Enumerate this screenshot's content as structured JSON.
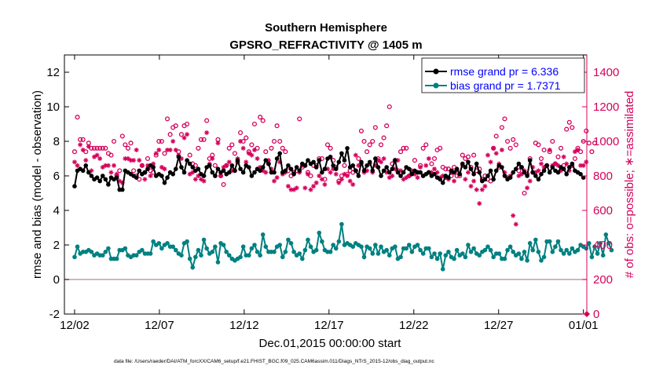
{
  "chart_data": {
    "type": "line",
    "title": "Southern Hemisphere",
    "subtitle": "GPSRO_REFRACTIVITY @ 1405 m",
    "xlabel": "Dec.01,2015 00:00:00 start",
    "ylabel": "rmse and bias (model - observation)",
    "ylabel_right": "# of obs: o=possible; ∗=assimilated",
    "x_ticks": [
      "12/02",
      "12/07",
      "12/12",
      "12/17",
      "12/22",
      "12/27",
      "01/01"
    ],
    "x_tick_days": [
      1,
      6,
      11,
      16,
      21,
      26,
      31
    ],
    "xlim": [
      0.4,
      31.2
    ],
    "y_ticks": [
      "-2",
      "0",
      "2",
      "4",
      "6",
      "8",
      "10",
      "12"
    ],
    "ylim": [
      -2,
      13
    ],
    "y2_ticks": [
      "0",
      "200",
      "400",
      "600",
      "800",
      "1000",
      "1200",
      "1400"
    ],
    "y2lim": [
      0,
      1500
    ],
    "legend": [
      {
        "label": "rmse grand pr = 6.336",
        "color": "#000000"
      },
      {
        "label": "bias grand pr = 1.7371",
        "color": "#008080"
      }
    ],
    "colors": {
      "rmse": "#000000",
      "bias": "#008080",
      "obs": "#d6005c",
      "zero": "#b08c94"
    },
    "series": [
      {
        "name": "rmse",
        "values": [
          5.4,
          6.3,
          6.4,
          6.3,
          6.6,
          6.2,
          6.0,
          5.8,
          5.9,
          5.7,
          6.0,
          5.8,
          5.5,
          5.9,
          5.8,
          5.9,
          5.2,
          5.2,
          6.3,
          6.2,
          6.1,
          6.0,
          5.9,
          6.3,
          6.1,
          6.2,
          6.4,
          6.6,
          6.5,
          6.0,
          6.1,
          6.0,
          5.6,
          5.9,
          6.2,
          6.1,
          6.4,
          7.1,
          6.5,
          6.2,
          6.9,
          6.7,
          6.5,
          6.3,
          6.4,
          6.1,
          6.0,
          6.5,
          6.6,
          6.2,
          6.0,
          6.4,
          6.2,
          6.3,
          6.1,
          6.2,
          6.6,
          6.3,
          6.9,
          6.4,
          6.2,
          6.6,
          6.5,
          6.0,
          6.2,
          6.4,
          6.3,
          6.5,
          6.9,
          6.7,
          6.2,
          6.2,
          7.0,
          7.3,
          6.2,
          6.3,
          6.6,
          6.4,
          6.1,
          6.5,
          6.3,
          6.7,
          6.6,
          6.9,
          6.7,
          6.8,
          6.5,
          6.9,
          6.2,
          6.4,
          7.0,
          7.1,
          6.6,
          6.4,
          6.8,
          7.3,
          6.9,
          7.6,
          6.5,
          6.6,
          6.3,
          6.0,
          6.8,
          6.3,
          6.6,
          6.8,
          6.3,
          7.0,
          6.5,
          6.0,
          6.3,
          6.5,
          6.2,
          6.4,
          6.9,
          6.2,
          6.0,
          6.2,
          6.5,
          6.4,
          6.1,
          6.3,
          6.2,
          6.2,
          6.0,
          6.1,
          6.2,
          6.0,
          6.1,
          5.9,
          5.8,
          5.6,
          6.0,
          5.9,
          6.3,
          6.2,
          6.4,
          6.1,
          6.7,
          6.5,
          6.8,
          6.4,
          6.1,
          6.7,
          6.2,
          5.7,
          5.8,
          6.0,
          6.3,
          5.8,
          6.3,
          6.6,
          6.5,
          6.0,
          5.8,
          5.9,
          6.2,
          6.4,
          6.7,
          6.5,
          6.2,
          6.0,
          6.9,
          6.2,
          6.0,
          5.8,
          6.1,
          6.3,
          6.6,
          6.2,
          6.5,
          6.3,
          6.2,
          6.5,
          6.4,
          6.1,
          6.5,
          6.7,
          6.3,
          6.2,
          6.1,
          5.9
        ]
      },
      {
        "name": "bias",
        "values": [
          1.3,
          1.9,
          1.5,
          1.6,
          1.6,
          1.7,
          1.6,
          1.4,
          1.5,
          1.4,
          1.4,
          1.6,
          1.8,
          1.2,
          1.2,
          1.2,
          1.7,
          1.7,
          1.8,
          1.4,
          1.3,
          1.4,
          1.4,
          1.6,
          1.7,
          1.5,
          1.5,
          1.5,
          2.2,
          2.0,
          2.1,
          1.8,
          2.0,
          2.1,
          1.9,
          1.9,
          1.7,
          1.5,
          1.4,
          2.1,
          2.2,
          1.2,
          0.7,
          1.3,
          1.7,
          1.4,
          2.3,
          1.8,
          1.5,
          1.6,
          1.9,
          1.0,
          2.1,
          2.0,
          1.6,
          1.4,
          1.2,
          1.1,
          1.2,
          1.3,
          1.9,
          1.4,
          1.4,
          1.8,
          2.0,
          1.6,
          1.4,
          2.6,
          1.9,
          1.6,
          1.6,
          1.6,
          1.9,
          2.0,
          1.3,
          1.6,
          2.3,
          2.1,
          1.6,
          1.4,
          1.5,
          1.2,
          1.7,
          2.3,
          1.9,
          1.6,
          1.7,
          2.7,
          2.2,
          1.7,
          1.6,
          1.6,
          2.0,
          1.8,
          2.2,
          3.2,
          2.0,
          2.1,
          2.0,
          1.9,
          2.1,
          2.0,
          1.9,
          1.3,
          1.9,
          1.8,
          1.5,
          2.0,
          1.5,
          1.9,
          1.6,
          1.7,
          1.4,
          1.8,
          1.9,
          1.2,
          1.3,
          1.8,
          1.8,
          2.0,
          1.6,
          1.9,
          2.0,
          1.7,
          1.5,
          1.8,
          1.8,
          1.3,
          1.5,
          1.2,
          1.5,
          0.6,
          1.4,
          1.6,
          1.3,
          1.2,
          1.7,
          1.4,
          1.5,
          1.3,
          2.0,
          1.6,
          1.8,
          1.5,
          1.4,
          1.6,
          1.7,
          1.9,
          1.7,
          1.3,
          1.5,
          1.5,
          1.2,
          1.2,
          1.7,
          1.9,
          1.6,
          1.4,
          1.5,
          1.2,
          1.6,
          1.1,
          2.1,
          1.7,
          2.3,
          1.6,
          1.1,
          1.3,
          2.2,
          2.2,
          1.6,
          1.9,
          2.2,
          1.7,
          1.5,
          1.7,
          1.5,
          1.8,
          1.6,
          1.7,
          2.0,
          1.9,
          1.8,
          2.1,
          1.3,
          1.9,
          1.5,
          2.1,
          1.4,
          2.6,
          2.1,
          1.7
        ]
      },
      {
        "name": "obs possible",
        "values": [
          940,
          1140,
          1010,
          1010,
          940,
          990,
          960,
          960,
          960,
          960,
          960,
          960,
          930,
          920,
          1000,
          800,
          830,
          1030,
          980,
          960,
          990,
          830,
          800,
          780,
          860,
          820,
          900,
          830,
          820,
          920,
          1000,
          1000,
          930,
          1130,
          1040,
          1080,
          1090,
          940,
          1040,
          1090,
          1100,
          920,
          870,
          860,
          960,
          1010,
          1010,
          1120,
          900,
          920,
          860,
          1010,
          800,
          750,
          860,
          960,
          980,
          930,
          880,
          1050,
          1000,
          1020,
          940,
          980,
          1100,
          960,
          1140,
          1120,
          940,
          870,
          960,
          1000,
          1090,
          1000,
          960,
          940,
          830,
          800,
          820,
          830,
          1130,
          850,
          860,
          820,
          800,
          860,
          860,
          900,
          900,
          780,
          980,
          960,
          890,
          850,
          770,
          800,
          860,
          810,
          830,
          820,
          830,
          900,
          1060,
          1000,
          940,
          980,
          1000,
          1080,
          900,
          980,
          1020,
          1090,
          1200,
          870,
          890,
          830,
          940,
          960,
          960,
          800,
          820,
          890,
          820,
          860,
          960,
          980,
          820,
          870,
          900,
          950,
          960,
          850,
          840,
          840,
          800,
          850,
          800,
          800,
          920,
          900,
          910,
          850,
          920,
          830,
          840,
          780,
          800,
          780,
          770,
          960,
          1030,
          850,
          1080,
          1130,
          1000,
          960,
          1010,
          980,
          830,
          850,
          700,
          810,
          900,
          820,
          990,
          980,
          900,
          950,
          860,
          940,
          1000,
          870,
          910,
          960,
          860,
          1070,
          1110,
          1080,
          900,
          960,
          940,
          1000,
          1060,
          990,
          940,
          990
        ]
      },
      {
        "name": "obs assimilated",
        "values": [
          880,
          860,
          980,
          950,
          890,
          970,
          830,
          910,
          920,
          900,
          850,
          860,
          860,
          820,
          860,
          810,
          770,
          760,
          900,
          900,
          890,
          890,
          950,
          890,
          860,
          780,
          860,
          800,
          870,
          930,
          950,
          850,
          840,
          950,
          950,
          1000,
          950,
          920,
          900,
          1020,
          1040,
          810,
          820,
          780,
          800,
          780,
          770,
          1050,
          870,
          900,
          800,
          990,
          800,
          850,
          860,
          880,
          830,
          830,
          900,
          1000,
          960,
          880,
          930,
          920,
          950,
          900,
          850,
          830,
          820,
          890,
          840,
          770,
          790,
          880,
          810,
          820,
          740,
          720,
          720,
          730,
          820,
          860,
          730,
          810,
          720,
          740,
          760,
          800,
          780,
          750,
          840,
          820,
          840,
          810,
          760,
          780,
          810,
          800,
          770,
          750,
          920,
          860,
          870,
          820,
          830,
          870,
          820,
          860,
          890,
          880,
          900,
          820,
          790,
          800,
          840,
          890,
          830,
          780,
          790,
          800,
          830,
          810,
          790,
          850,
          800,
          860,
          900,
          820,
          840,
          820,
          790,
          800,
          790,
          780,
          820,
          770,
          830,
          810,
          860,
          780,
          820,
          740,
          770,
          720,
          640,
          720,
          740,
          920,
          880,
          960,
          930,
          870,
          950,
          820,
          790,
          800,
          570,
          520,
          800,
          810,
          830,
          730,
          770,
          850,
          820,
          830,
          870,
          850,
          860,
          950,
          860,
          870,
          860,
          830,
          910,
          870,
          830,
          860,
          940,
          950,
          860,
          860,
          880
        ]
      }
    ]
  },
  "footer": {
    "data_file": "data file: /Users/raeder/DAI/ATM_forcXX/CAM6_setup/f.e21.FHIST_BGC.f09_025.CAM6assim.011/Diags_NTrS_2015-12/obs_diag_output.nc"
  }
}
